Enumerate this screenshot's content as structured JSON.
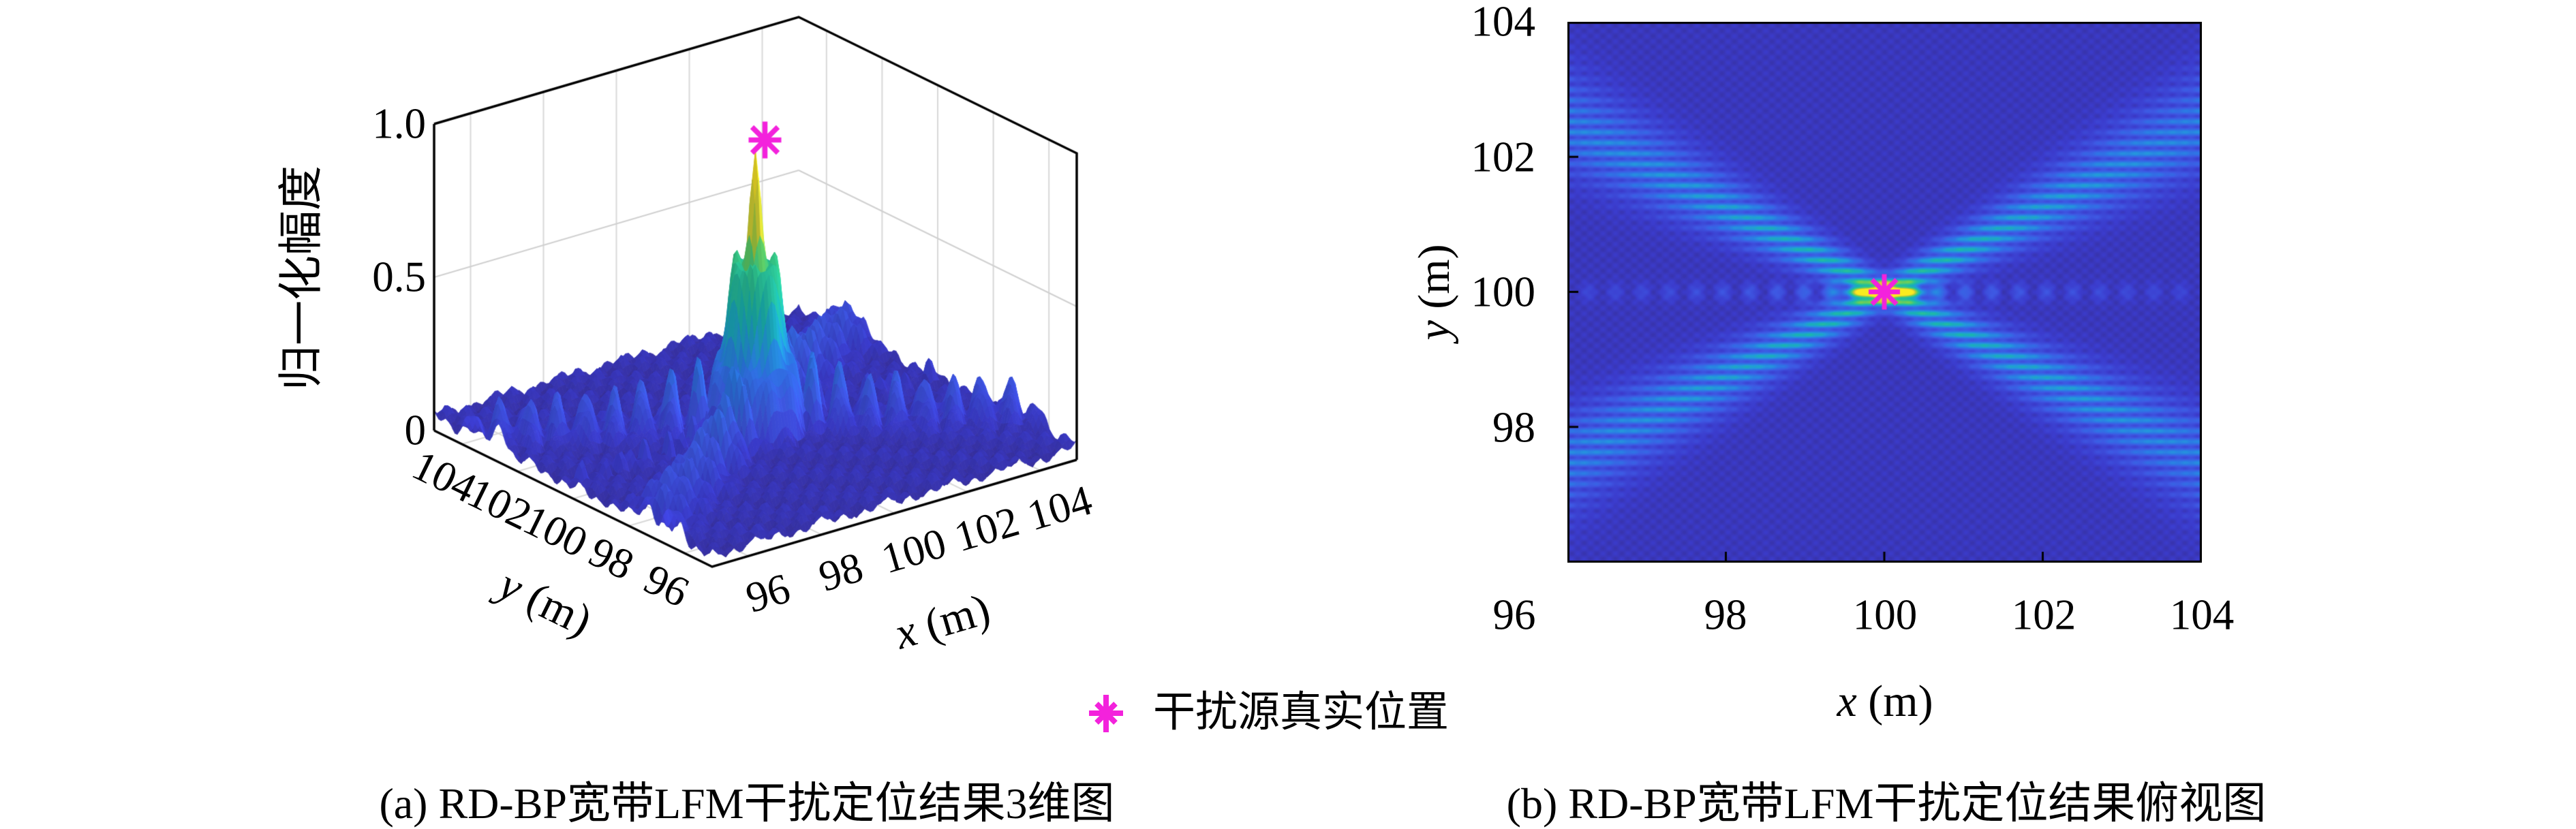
{
  "figure": {
    "background": "#ffffff"
  },
  "plot3d": {
    "zlabel": "归一化幅度",
    "zticks": [
      "1.0",
      "0.5",
      "0"
    ],
    "yticks": [
      "104",
      "102",
      "100",
      "98",
      "96"
    ],
    "xticks": [
      "96",
      "98",
      "100",
      "102",
      "104"
    ],
    "xlabel_var": "x",
    "xlabel_unit": "(m)",
    "ylabel_var": "y",
    "ylabel_unit": "(m)"
  },
  "plot2d": {
    "yticks": [
      "104",
      "102",
      "100",
      "98"
    ],
    "xticks": [
      "96",
      "98",
      "100",
      "102",
      "104"
    ],
    "xlabel_var": "x",
    "xlabel_unit": "(m)",
    "ylabel_var": "y",
    "ylabel_unit": "(m)"
  },
  "legend": {
    "marker": "asterisk-icon",
    "marker_color": "#F322DC",
    "label": "干扰源真实位置"
  },
  "captions": {
    "a": "(a) RD-BP宽带LFM干扰定位结果3维图",
    "b": "(b) RD-BP宽带LFM干扰定位结果俯视图"
  },
  "colors": {
    "marker_magenta": "#F322DC",
    "surface_body_blue": "#3a3cc8",
    "beam_cyan": "#2d93dc",
    "hotspot_green": "#30c48b",
    "peak_yellow": "#edce38",
    "grid_gray": "#d8d8d8",
    "axis_black": "#000000"
  },
  "chart_data": [
    {
      "type": "surface",
      "subplot": "a",
      "title": "(a) RD-BP宽带LFM干扰定位结果3维图",
      "xlabel": "x (m)",
      "ylabel": "y (m)",
      "zlabel": "归一化幅度",
      "x_range": [
        95,
        105
      ],
      "y_range": [
        95,
        105
      ],
      "z_range": [
        0,
        1
      ],
      "xticks": [
        96,
        98,
        100,
        102,
        104
      ],
      "yticks": [
        104,
        102,
        100,
        98,
        96
      ],
      "zticks": [
        1.0,
        0.5,
        0
      ],
      "peak": {
        "x": 100,
        "y": 100,
        "normalized_amplitude": 1.0
      },
      "true_source_marker": {
        "x": 100,
        "y": 100,
        "z": 1.0,
        "symbol": "*",
        "color": "#F322DC"
      },
      "colormap": "parula",
      "structure": "narrow main peak at (100,100) rising to ~0.9 with X-shaped sidelobe ridges (slope ±0.62) of scalloped bumps ~0.2-0.35 and low rippled floor ~0.05-0.12",
      "legend_position": "below-center"
    },
    {
      "type": "heatmap",
      "subplot": "b",
      "title": "(b) RD-BP宽带LFM干扰定位结果俯视图",
      "xlabel": "x (m)",
      "ylabel": "y (m)",
      "x_range": [
        96,
        104
      ],
      "y_range": [
        96,
        104
      ],
      "xticks": [
        96,
        98,
        100,
        102,
        104
      ],
      "yticks": [
        104,
        102,
        100,
        98
      ],
      "hotspot": {
        "x": 100,
        "y": 100,
        "normalized_amplitude": 1.0
      },
      "true_source_marker": {
        "x": 100,
        "y": 100,
        "symbol": "*",
        "color": "#F322DC"
      },
      "colormap": "parula",
      "structure": "blue background with two interference beams (slope ±0.62) crossing at (100,100), fine horizontal fringes (period ~0.16 m), green-yellow hotspot at center"
    }
  ]
}
